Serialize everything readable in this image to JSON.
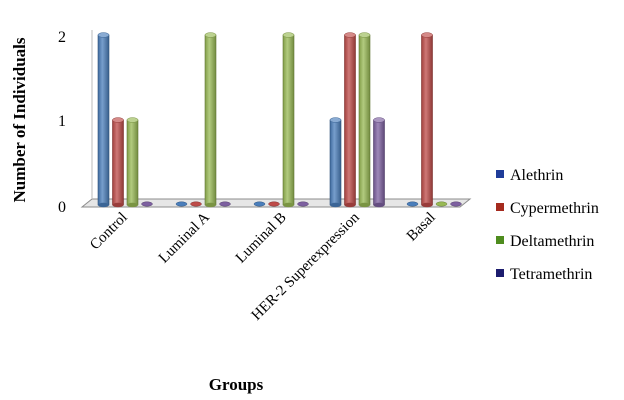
{
  "chart_data": {
    "type": "bar",
    "style": "3d-clustered-column",
    "categories": [
      "Control",
      "Luminal A",
      "Luminal B",
      "HER-2 Superexpression",
      "Basal"
    ],
    "series": [
      {
        "name": "Alethrin",
        "values": [
          2,
          0,
          0,
          1,
          0
        ],
        "color": "#4a7ebb"
      },
      {
        "name": "Cypermethrin",
        "values": [
          1,
          0,
          0,
          2,
          2
        ],
        "color": "#be4b48"
      },
      {
        "name": "Deltamethrin",
        "values": [
          1,
          2,
          2,
          2,
          0
        ],
        "color": "#98b954"
      },
      {
        "name": "Tetramethrin",
        "values": [
          0,
          0,
          0,
          1,
          0
        ],
        "color": "#7d60a0"
      }
    ],
    "legend_colors": [
      "#1f3c99",
      "#a52a1e",
      "#4e8c1e",
      "#1c1c6e"
    ],
    "xlabel": "Groups",
    "ylabel": "Number of Individuals",
    "yticks": [
      "0",
      "1",
      "2"
    ],
    "ylim": [
      0,
      2
    ],
    "legend_position": "right",
    "grid": false
  }
}
